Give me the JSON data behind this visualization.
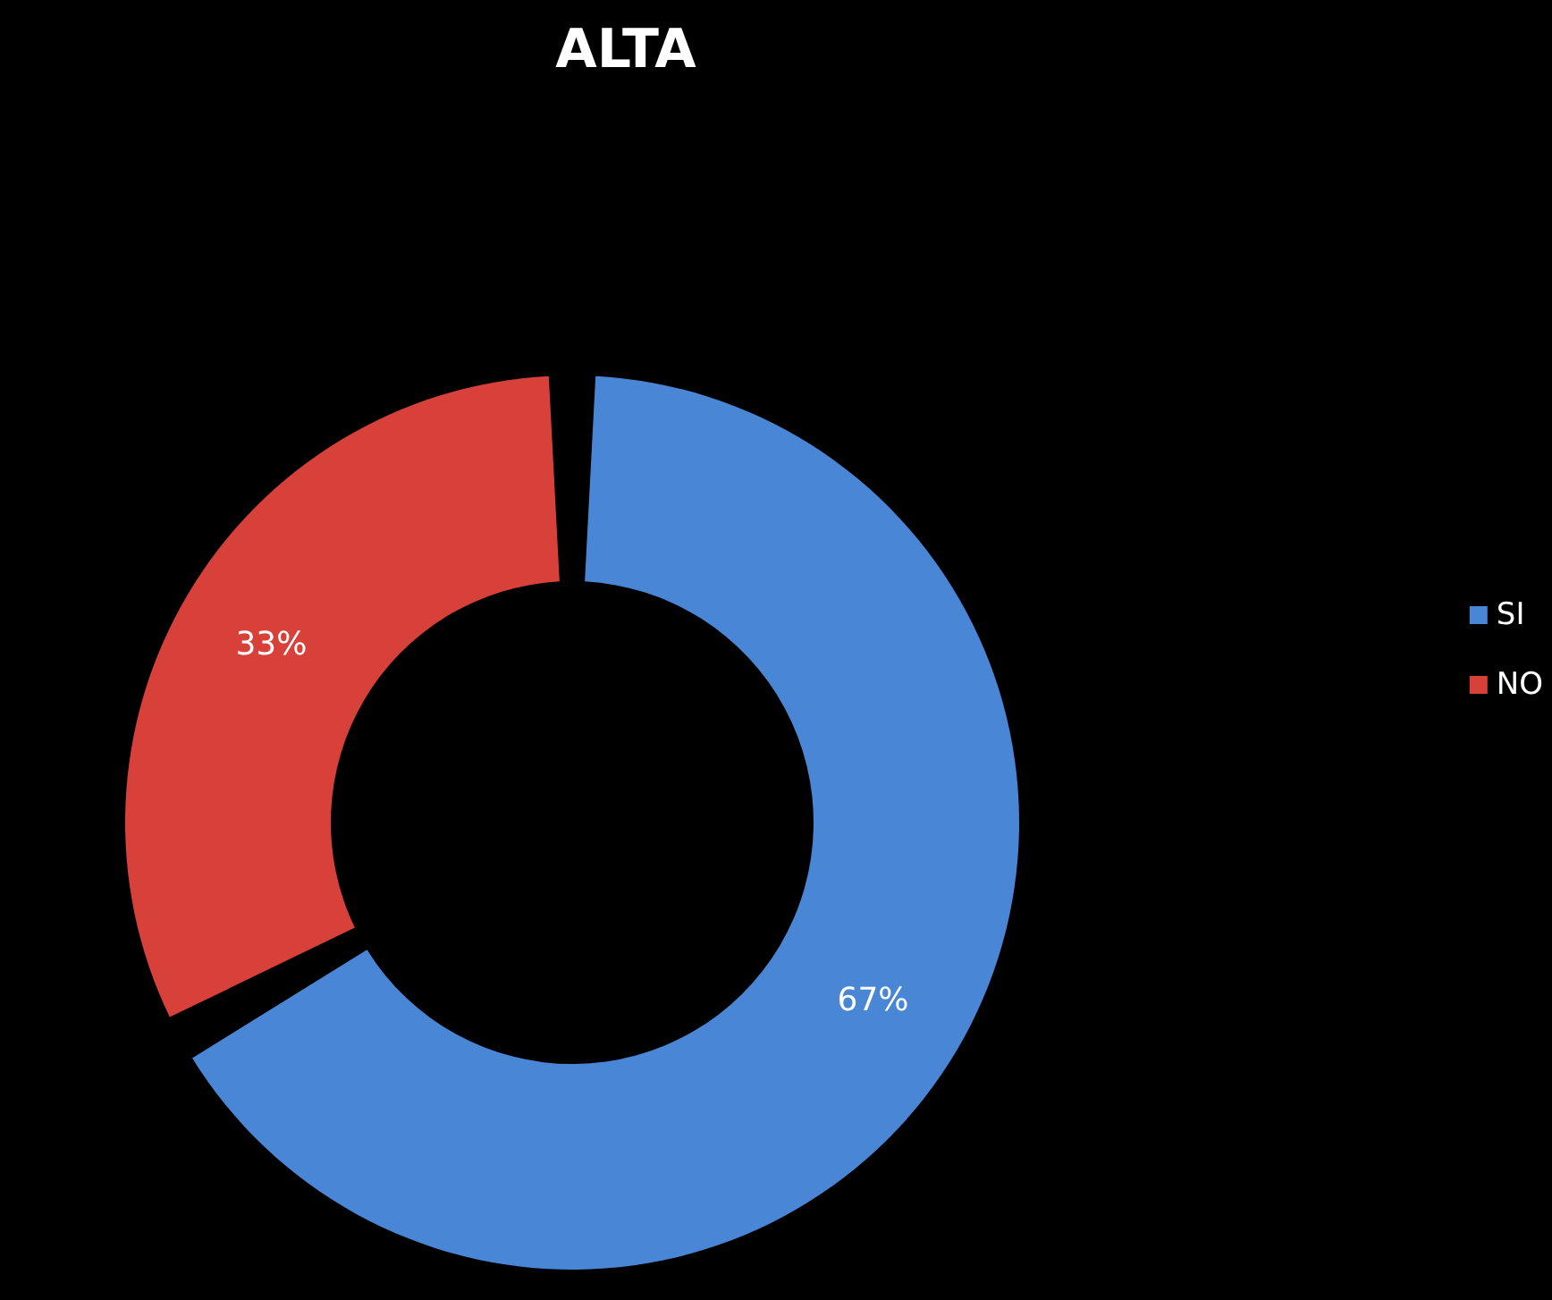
{
  "chart_data": {
    "type": "donut",
    "title": "ALTA",
    "categories": [
      "SI",
      "NO"
    ],
    "values": [
      67,
      33
    ],
    "colors": [
      "#4a86d6",
      "#d8413a"
    ],
    "value_labels": [
      "67%",
      "33%"
    ],
    "legend": "right"
  }
}
